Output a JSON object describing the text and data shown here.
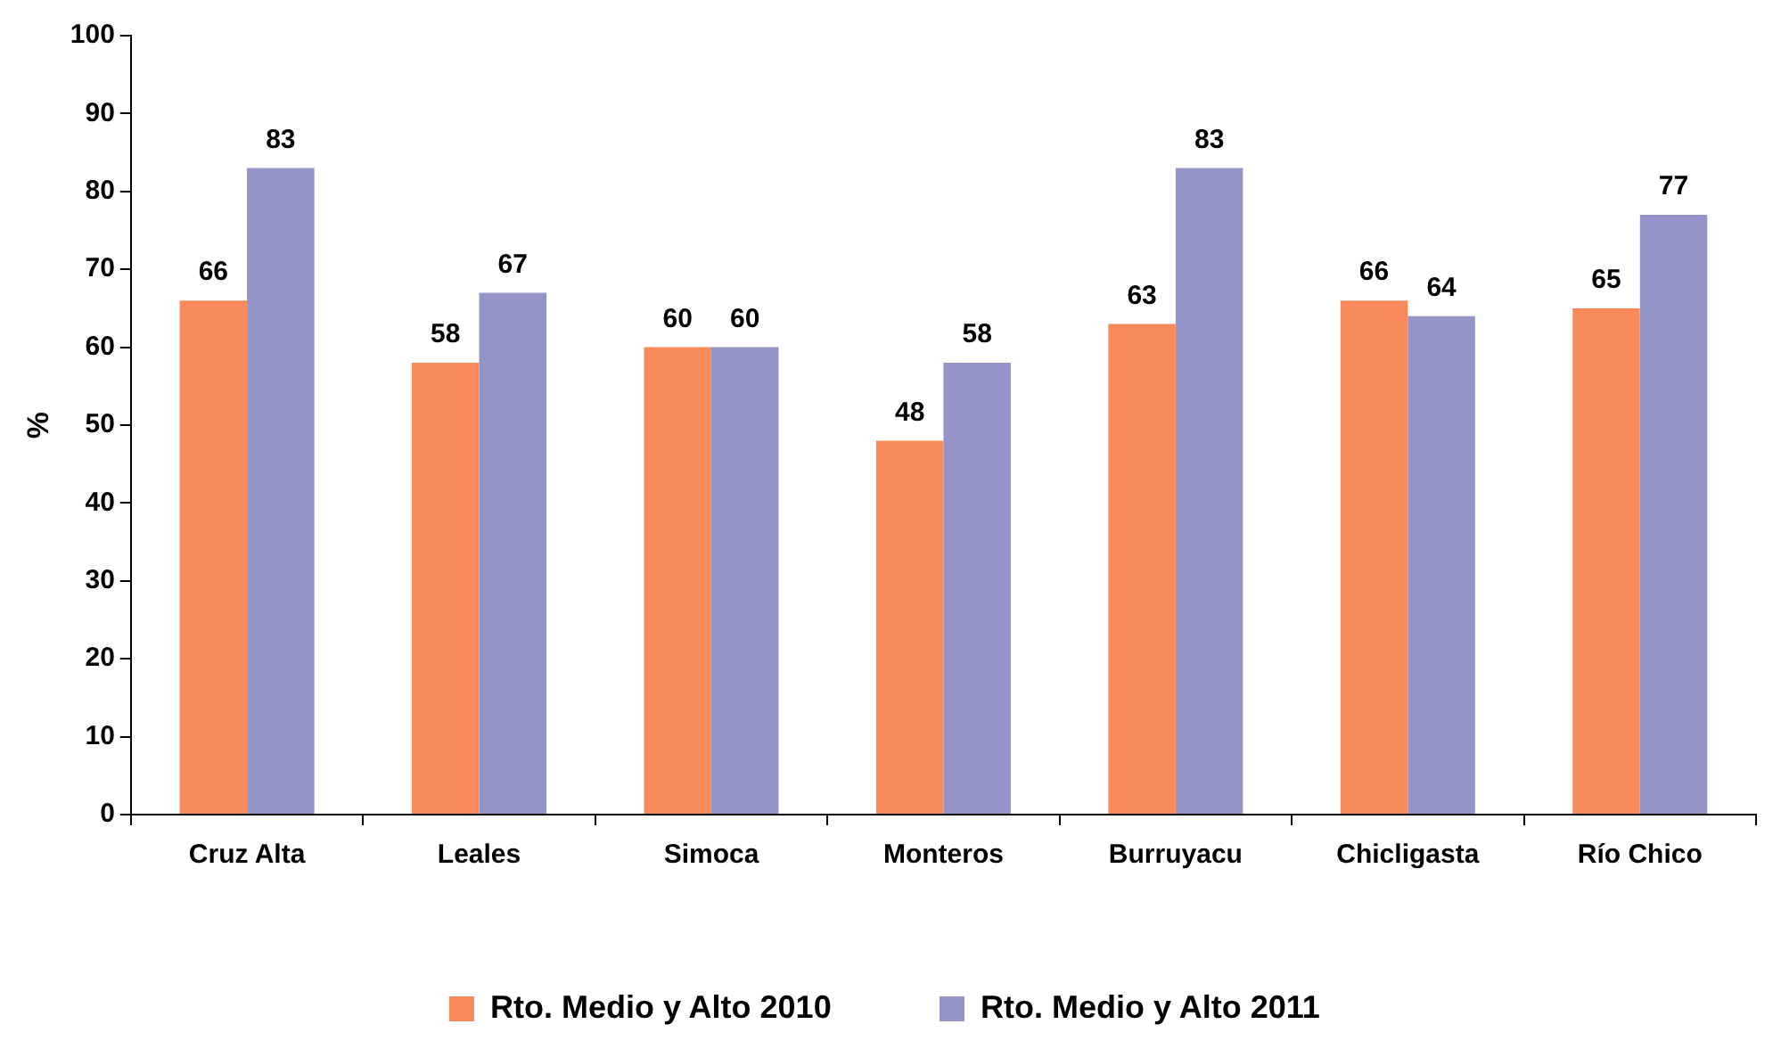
{
  "chart_data": {
    "type": "bar",
    "ylabel": "%",
    "categories": [
      "Cruz Alta",
      "Leales",
      "Simoca",
      "Monteros",
      "Burruyacu",
      "Chicligasta",
      "Río Chico"
    ],
    "series": [
      {
        "name": "Rto. Medio y Alto 2010",
        "color": "#f88a5c",
        "values": [
          66,
          58,
          60,
          48,
          63,
          66,
          65
        ]
      },
      {
        "name": "Rto. Medio y Alto 2011",
        "color": "#9494c8",
        "values": [
          83,
          67,
          60,
          58,
          83,
          64,
          77
        ]
      }
    ],
    "ylim": [
      0,
      100
    ],
    "yticks": [
      0,
      10,
      20,
      30,
      40,
      50,
      60,
      70,
      80,
      90,
      100
    ],
    "grid": false,
    "legend": "bottom",
    "data_labels": true
  }
}
